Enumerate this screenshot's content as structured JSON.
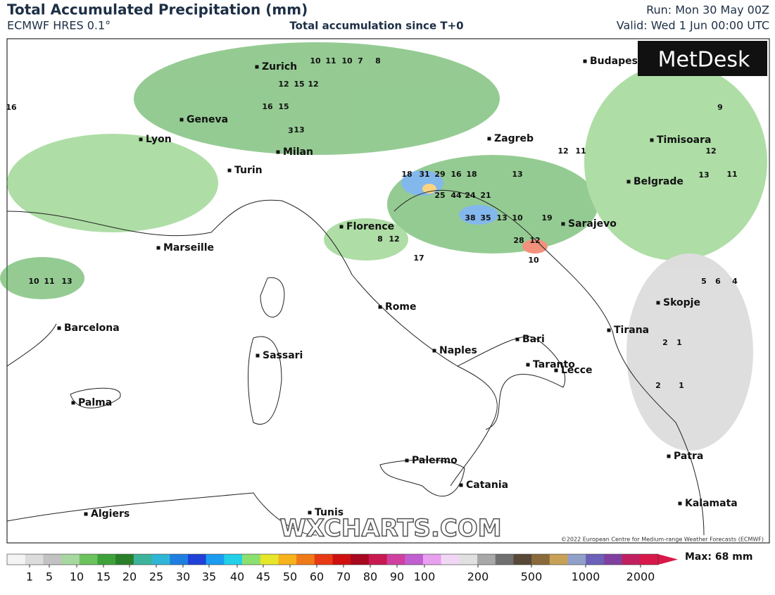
{
  "header": {
    "title": "Total Accumulated Precipitation (mm)",
    "subtitle": "ECMWF HRES 0.1°",
    "center": "Total accumulation since T+0",
    "run": "Run: Mon 30 May 00Z",
    "valid": "Valid: Wed 1 Jun 00:00 UTC"
  },
  "logo": "MetDesk",
  "watermark": "WXCHARTS.COM",
  "copyright": "©2022 European Centre for Medium-range Weather Forecasts (ECMWF)",
  "cities": [
    "Zurich",
    "Geneva",
    "Lyon",
    "Milan",
    "Turin",
    "Marseille",
    "Florence",
    "Rome",
    "Naples",
    "Bari",
    "Taranto",
    "Lecce",
    "Barcelona",
    "Sassari",
    "Palma",
    "Palermo",
    "Catania",
    "Algiers",
    "Tunis",
    "Budapest",
    "Zagreb",
    "Sarajevo",
    "Belgrade",
    "Timisoara",
    "Skopje",
    "Tirana",
    "Patra",
    "Kalamata"
  ],
  "map_values": [
    10,
    11,
    10,
    7,
    8,
    12,
    15,
    12,
    16,
    15,
    13,
    3,
    18,
    31,
    29,
    16,
    18,
    13,
    25,
    44,
    24,
    21,
    38,
    35,
    13,
    10,
    28,
    12,
    19,
    10,
    12,
    11,
    10,
    13,
    11,
    8,
    12,
    17,
    16,
    9,
    12,
    11,
    13,
    2,
    1,
    1,
    2,
    5,
    6,
    4
  ],
  "colorbar": {
    "ticks": [
      1,
      5,
      10,
      15,
      20,
      25,
      30,
      35,
      40,
      45,
      50,
      60,
      70,
      80,
      90,
      100,
      200,
      500,
      1000,
      2000
    ],
    "colors": [
      "#f4f4f4",
      "#dcdcdc",
      "#c2c2c2",
      "#a8d8a0",
      "#6cc25c",
      "#3ea13a",
      "#2a7f2a",
      "#3cb49c",
      "#2fb6d6",
      "#1f7fe0",
      "#2040d8",
      "#1c9cf0",
      "#22d0e8",
      "#8ce070",
      "#e6e62a",
      "#f7b21c",
      "#f07a18",
      "#e83a14",
      "#d01010",
      "#a80820",
      "#c81a50",
      "#d040a0",
      "#c060d0",
      "#e8a0f0",
      "#f0d8f4",
      "#e0e0e0",
      "#a8a8a8",
      "#707070",
      "#584838",
      "#8a6a3a",
      "#c8a058",
      "#90a0c8",
      "#6c60b8",
      "#8040a0",
      "#c02060",
      "#d81848"
    ],
    "max_label": "Max: 68 mm"
  }
}
